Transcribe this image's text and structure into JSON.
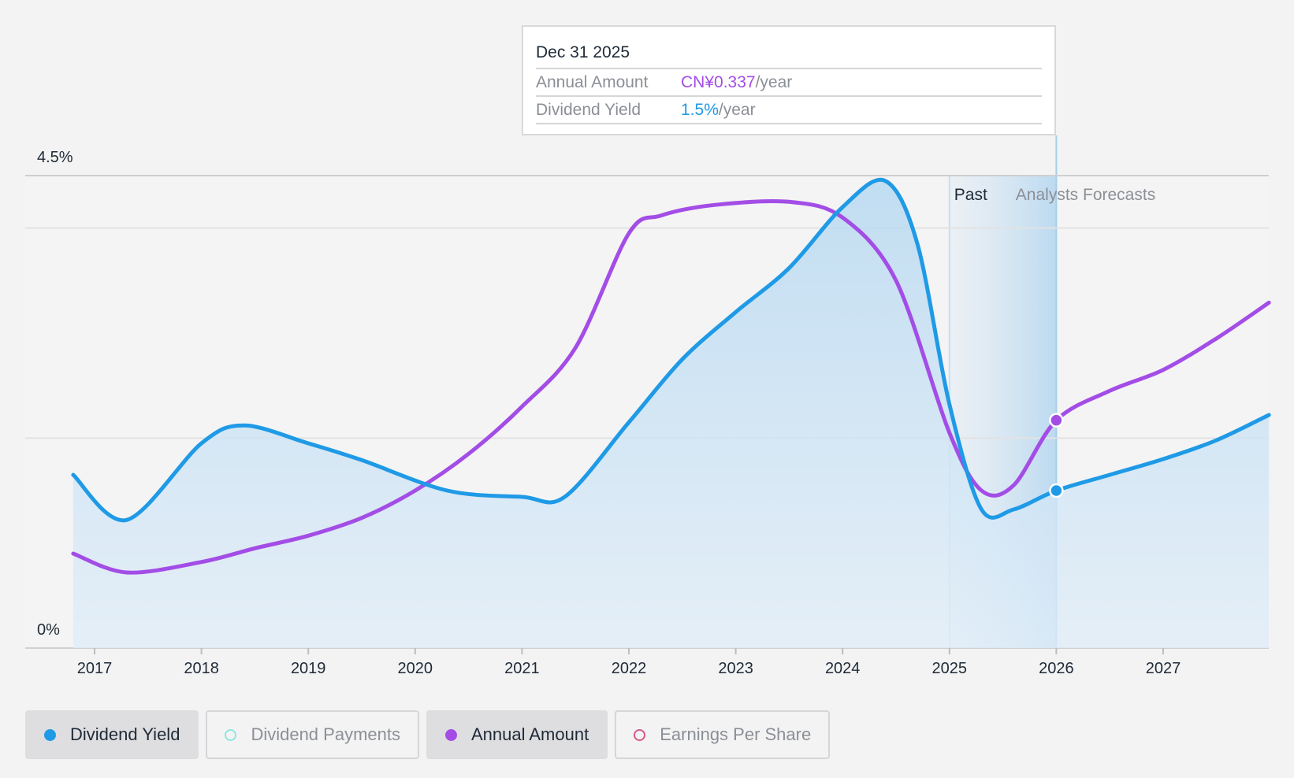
{
  "tooltip": {
    "date": "Dec 31 2025",
    "rows": [
      {
        "label": "Annual Amount",
        "value": "CN¥0.337",
        "unit": "/year"
      },
      {
        "label": "Dividend Yield",
        "value": "1.5%",
        "unit": "/year"
      }
    ]
  },
  "regions": {
    "past": "Past",
    "forecast": "Analysts Forecasts"
  },
  "legend": [
    {
      "label": "Dividend Yield",
      "color": "#1f9ae6",
      "active": true,
      "filled": true
    },
    {
      "label": "Dividend Payments",
      "color": "#8ee6df",
      "active": false,
      "filled": false
    },
    {
      "label": "Annual Amount",
      "color": "#a34de6",
      "active": true,
      "filled": true
    },
    {
      "label": "Earnings Per Share",
      "color": "#d8578b",
      "active": false,
      "filled": false
    }
  ],
  "colors": {
    "yield": "#1f9ae6",
    "amount": "#a34de6",
    "area": "#bcdcf2"
  },
  "chart_data": {
    "type": "line",
    "title": "",
    "xlabel": "",
    "ylabel": "",
    "ylim": [
      0,
      4.5
    ],
    "y_ticks": [
      "4.5%",
      "0%"
    ],
    "x_ticks": [
      "2017",
      "2018",
      "2019",
      "2020",
      "2021",
      "2022",
      "2023",
      "2024",
      "2025",
      "2026",
      "2027"
    ],
    "grid": true,
    "past_forecast_split": 2025.0,
    "highlight_date": "Dec 31 2025",
    "series": [
      {
        "name": "Dividend Yield",
        "unit": "%",
        "area": true,
        "points": [
          [
            2016.8,
            1.65
          ],
          [
            2017.3,
            1.22
          ],
          [
            2018.0,
            1.95
          ],
          [
            2018.4,
            2.12
          ],
          [
            2019.0,
            1.95
          ],
          [
            2019.5,
            1.79
          ],
          [
            2020.3,
            1.5
          ],
          [
            2021.0,
            1.44
          ],
          [
            2021.4,
            1.44
          ],
          [
            2022.0,
            2.15
          ],
          [
            2022.5,
            2.75
          ],
          [
            2023.0,
            3.2
          ],
          [
            2023.5,
            3.62
          ],
          [
            2024.0,
            4.2
          ],
          [
            2024.4,
            4.45
          ],
          [
            2024.7,
            3.85
          ],
          [
            2025.0,
            2.32
          ],
          [
            2025.3,
            1.32
          ],
          [
            2025.6,
            1.32
          ],
          [
            2026.0,
            1.5
          ],
          [
            2026.5,
            1.65
          ],
          [
            2027.0,
            1.8
          ],
          [
            2027.5,
            1.98
          ],
          [
            2027.99,
            2.22
          ]
        ]
      },
      {
        "name": "Annual Amount",
        "unit": "CN¥",
        "area": false,
        "points": [
          [
            2016.8,
            0.9
          ],
          [
            2017.3,
            0.72
          ],
          [
            2018.0,
            0.82
          ],
          [
            2018.5,
            0.95
          ],
          [
            2019.0,
            1.07
          ],
          [
            2019.5,
            1.24
          ],
          [
            2020.0,
            1.5
          ],
          [
            2020.5,
            1.85
          ],
          [
            2021.0,
            2.3
          ],
          [
            2021.5,
            2.86
          ],
          [
            2022.0,
            3.95
          ],
          [
            2022.3,
            4.12
          ],
          [
            2022.8,
            4.22
          ],
          [
            2023.5,
            4.25
          ],
          [
            2024.0,
            4.1
          ],
          [
            2024.5,
            3.5
          ],
          [
            2025.0,
            2.05
          ],
          [
            2025.3,
            1.5
          ],
          [
            2025.6,
            1.55
          ],
          [
            2026.0,
            2.17
          ],
          [
            2026.5,
            2.45
          ],
          [
            2027.0,
            2.65
          ],
          [
            2027.5,
            2.95
          ],
          [
            2027.99,
            3.29
          ]
        ]
      }
    ],
    "markers": [
      {
        "series": "Annual Amount",
        "x": 2026.0,
        "y": 2.17
      },
      {
        "series": "Dividend Yield",
        "x": 2026.0,
        "y": 1.5
      }
    ]
  }
}
